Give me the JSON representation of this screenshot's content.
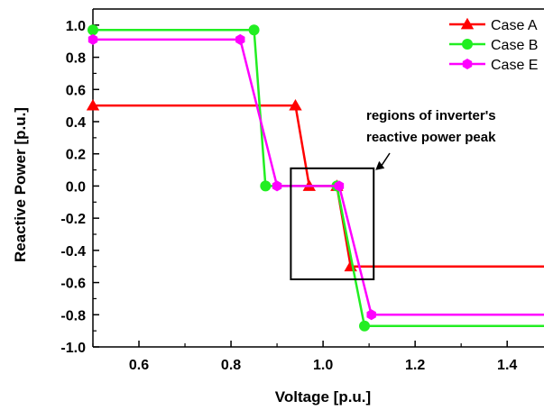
{
  "chart_data": {
    "type": "line",
    "xlabel": "Voltage [p.u.]",
    "ylabel": "Reactive Power [p.u.]",
    "xlim": [
      0.5,
      1.48
    ],
    "ylim": [
      -1.0,
      1.1
    ],
    "x_ticks": [
      "0.6",
      "0.8",
      "1.0",
      "1.2",
      "1.4"
    ],
    "x_tick_values": [
      0.6,
      0.8,
      1.0,
      1.2,
      1.4
    ],
    "y_ticks": [
      "1.0",
      "0.8",
      "0.6",
      "0.4",
      "0.2",
      "0.0",
      "-0.2",
      "-0.4",
      "-0.6",
      "-0.8",
      "-1.0"
    ],
    "y_tick_values": [
      1.0,
      0.8,
      0.6,
      0.4,
      0.2,
      0.0,
      -0.2,
      -0.4,
      -0.6,
      -0.8,
      -1.0
    ],
    "legend_position": "top-right",
    "grid": false,
    "series": [
      {
        "name": "Case A",
        "color": "#ff0000",
        "marker": "triangle",
        "x": [
          0.5,
          0.94,
          0.97,
          1.03,
          1.06,
          1.48
        ],
        "y": [
          0.5,
          0.5,
          0.0,
          0.0,
          -0.5,
          -0.5
        ]
      },
      {
        "name": "Case B",
        "color": "#22ee22",
        "marker": "circle",
        "x": [
          0.5,
          0.85,
          0.875,
          1.03,
          1.09,
          1.48
        ],
        "y": [
          0.97,
          0.97,
          0.0,
          0.0,
          -0.87,
          -0.87
        ]
      },
      {
        "name": "Case E",
        "color": "#ff00ff",
        "marker": "hexagon",
        "x": [
          0.5,
          0.82,
          0.9,
          1.035,
          1.105,
          1.48
        ],
        "y": [
          0.91,
          0.91,
          0.0,
          0.0,
          -0.8,
          -0.8
        ]
      }
    ],
    "annotations": [
      {
        "text": [
          "regions of inverter's",
          "reactive power peak"
        ],
        "box": {
          "x0": 0.93,
          "x1": 1.11,
          "y0": -0.58,
          "y1": 0.11
        }
      }
    ]
  }
}
